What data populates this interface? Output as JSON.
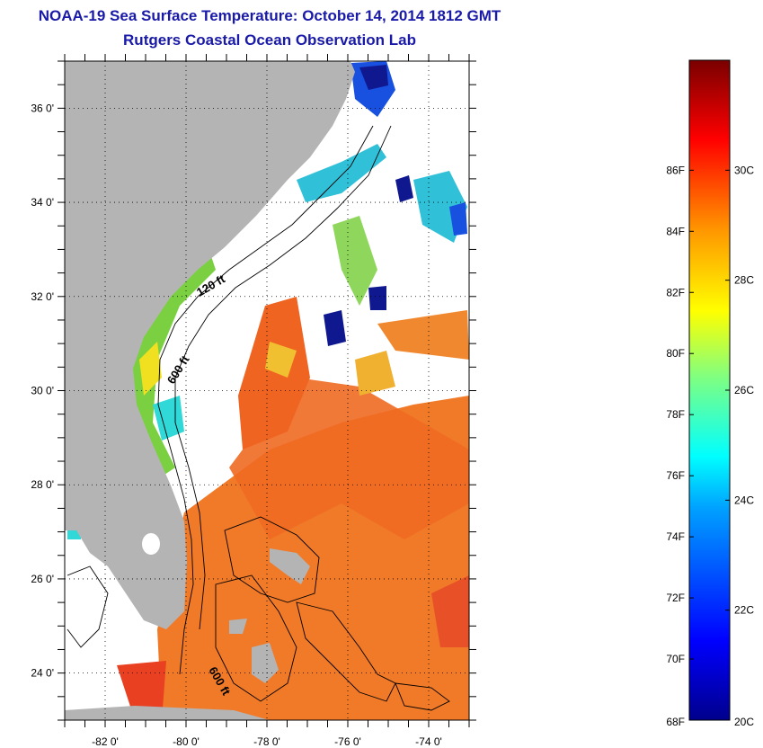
{
  "title": "NOAA-19 Sea Surface Temperature:  October 14, 2014 1812 GMT",
  "subtitle": "Rutgers Coastal Ocean Observation Lab",
  "map": {
    "lon_range": [
      -83.0,
      -73.0
    ],
    "lat_range": [
      23.0,
      37.0
    ],
    "lat_ticks": [
      {
        "value": 24,
        "label": "24 0'"
      },
      {
        "value": 26,
        "label": "26 0'"
      },
      {
        "value": 28,
        "label": "28 0'"
      },
      {
        "value": 30,
        "label": "30 0'"
      },
      {
        "value": 32,
        "label": "32 0'"
      },
      {
        "value": 34,
        "label": "34 0'"
      },
      {
        "value": 36,
        "label": "36 0'"
      }
    ],
    "lon_ticks": [
      {
        "value": -82,
        "label": "-82 0'"
      },
      {
        "value": -80,
        "label": "-80 0'"
      },
      {
        "value": -78,
        "label": "-78 0'"
      },
      {
        "value": -76,
        "label": "-76 0'"
      },
      {
        "value": -74,
        "label": "-74 0'"
      }
    ],
    "contour_labels": [
      {
        "label": "120 ft"
      },
      {
        "label": "600 ft"
      },
      {
        "label": "600 ft"
      }
    ],
    "colors": {
      "land": "#b4b4b4",
      "cloud": "#ffffff",
      "warm": "#f07020",
      "hot": "#e84020",
      "yellow": "#f0e020",
      "green": "#7ad040",
      "cyan": "#30d8d8",
      "blue": "#1850e0",
      "navy": "#101890"
    }
  },
  "colorbar": {
    "fahrenheit": [
      "68F",
      "70F",
      "72F",
      "74F",
      "76F",
      "78F",
      "80F",
      "82F",
      "84F",
      "86F"
    ],
    "celsius": [
      "20C",
      "22C",
      "24C",
      "26C",
      "28C",
      "30C"
    ]
  }
}
